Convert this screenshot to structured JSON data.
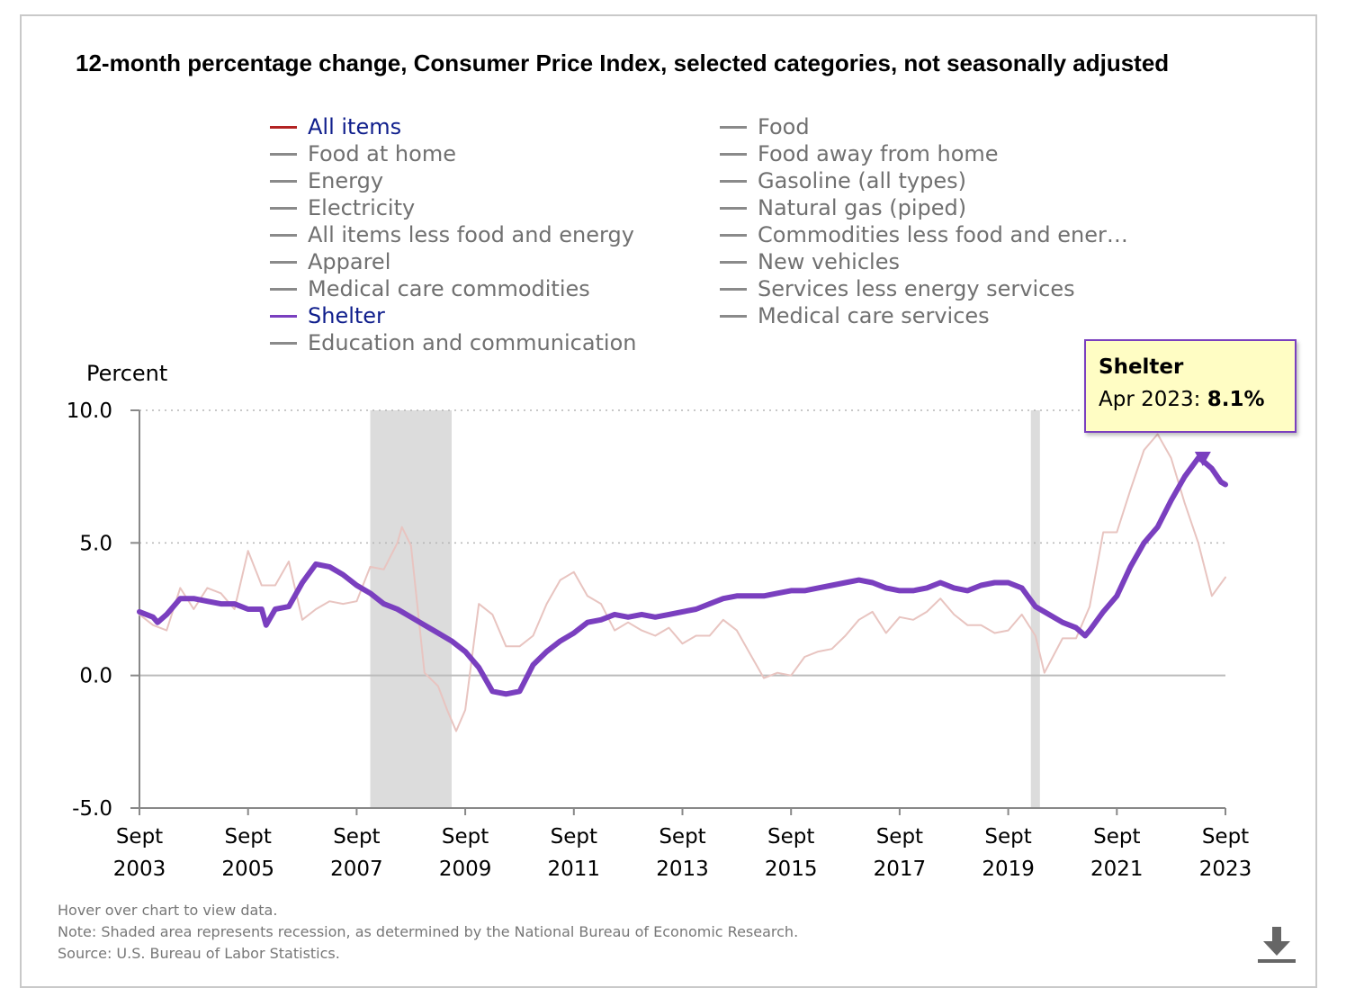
{
  "title": "12-month percentage change, Consumer Price Index, selected categories, not seasonally adjusted",
  "legend": [
    {
      "label": "All items",
      "color": "#b22222",
      "state": "active"
    },
    {
      "label": "Food",
      "color": "#8a8a8a",
      "state": "inactive"
    },
    {
      "label": "Food at home",
      "color": "#8a8a8a",
      "state": "inactive"
    },
    {
      "label": "Food away from home",
      "color": "#8a8a8a",
      "state": "inactive"
    },
    {
      "label": "Energy",
      "color": "#8a8a8a",
      "state": "inactive"
    },
    {
      "label": "Gasoline (all types)",
      "color": "#8a8a8a",
      "state": "inactive"
    },
    {
      "label": "Electricity",
      "color": "#8a8a8a",
      "state": "inactive"
    },
    {
      "label": "Natural gas (piped)",
      "color": "#8a8a8a",
      "state": "inactive"
    },
    {
      "label": "All items less food and energy",
      "color": "#8a8a8a",
      "state": "inactive"
    },
    {
      "label": "Commodities less food and ener…",
      "color": "#8a8a8a",
      "state": "inactive"
    },
    {
      "label": "Apparel",
      "color": "#8a8a8a",
      "state": "inactive"
    },
    {
      "label": "New vehicles",
      "color": "#8a8a8a",
      "state": "inactive"
    },
    {
      "label": "Medical care commodities",
      "color": "#8a8a8a",
      "state": "inactive"
    },
    {
      "label": "Services less energy services",
      "color": "#8a8a8a",
      "state": "inactive"
    },
    {
      "label": "Shelter",
      "color": "#7a3fbf",
      "state": "active"
    },
    {
      "label": "Medical care services",
      "color": "#8a8a8a",
      "state": "inactive"
    },
    {
      "label": "Education and communication",
      "color": "#8a8a8a",
      "state": "inactive"
    }
  ],
  "tooltip": {
    "series": "Shelter",
    "date": "Apr 2023:",
    "value": "8.1%"
  },
  "notes": [
    "Hover over chart to view data.",
    "Note: Shaded area represents recession, as determined by the National Bureau of Economic Research.",
    "Source: U.S. Bureau of Labor Statistics."
  ],
  "icons": {
    "download": "download-icon"
  },
  "chart_data": {
    "type": "line",
    "ylabel": "Percent",
    "ylim": [
      -5,
      10
    ],
    "yticks": [
      -5,
      0,
      5,
      10
    ],
    "ytick_labels": [
      "-5.0",
      "0.0",
      "5.0",
      "10.0"
    ],
    "xlim": [
      "2003-09",
      "2023-09"
    ],
    "xticks": [
      {
        "top": "Sept",
        "bottom": "2003",
        "date": "2003-09"
      },
      {
        "top": "Sept",
        "bottom": "2005",
        "date": "2005-09"
      },
      {
        "top": "Sept",
        "bottom": "2007",
        "date": "2007-09"
      },
      {
        "top": "Sept",
        "bottom": "2009",
        "date": "2009-09"
      },
      {
        "top": "Sept",
        "bottom": "2011",
        "date": "2011-09"
      },
      {
        "top": "Sept",
        "bottom": "2013",
        "date": "2013-09"
      },
      {
        "top": "Sept",
        "bottom": "2015",
        "date": "2015-09"
      },
      {
        "top": "Sept",
        "bottom": "2017",
        "date": "2017-09"
      },
      {
        "top": "Sept",
        "bottom": "2019",
        "date": "2019-09"
      },
      {
        "top": "Sept",
        "bottom": "2021",
        "date": "2021-09"
      },
      {
        "top": "Sept",
        "bottom": "2023",
        "date": "2023-09"
      }
    ],
    "recessions": [
      {
        "start": "2007-12",
        "end": "2009-06"
      },
      {
        "start": "2020-02",
        "end": "2020-04"
      }
    ],
    "grid": "horizontal dotted",
    "legend": "top",
    "series": [
      {
        "name": "All items",
        "color": "#e8c4c0",
        "points": [
          [
            "2003-09",
            2.3
          ],
          [
            "2003-12",
            1.9
          ],
          [
            "2004-03",
            1.7
          ],
          [
            "2004-06",
            3.3
          ],
          [
            "2004-09",
            2.5
          ],
          [
            "2004-12",
            3.3
          ],
          [
            "2005-03",
            3.1
          ],
          [
            "2005-06",
            2.5
          ],
          [
            "2005-09",
            4.7
          ],
          [
            "2005-12",
            3.4
          ],
          [
            "2006-03",
            3.4
          ],
          [
            "2006-06",
            4.3
          ],
          [
            "2006-09",
            2.1
          ],
          [
            "2006-12",
            2.5
          ],
          [
            "2007-03",
            2.8
          ],
          [
            "2007-06",
            2.7
          ],
          [
            "2007-09",
            2.8
          ],
          [
            "2007-12",
            4.1
          ],
          [
            "2008-03",
            4.0
          ],
          [
            "2008-06",
            5.0
          ],
          [
            "2008-07",
            5.6
          ],
          [
            "2008-09",
            4.9
          ],
          [
            "2008-12",
            0.1
          ],
          [
            "2009-03",
            -0.4
          ],
          [
            "2009-05",
            -1.3
          ],
          [
            "2009-07",
            -2.1
          ],
          [
            "2009-09",
            -1.3
          ],
          [
            "2009-12",
            2.7
          ],
          [
            "2010-03",
            2.3
          ],
          [
            "2010-06",
            1.1
          ],
          [
            "2010-09",
            1.1
          ],
          [
            "2010-12",
            1.5
          ],
          [
            "2011-03",
            2.7
          ],
          [
            "2011-06",
            3.6
          ],
          [
            "2011-09",
            3.9
          ],
          [
            "2011-12",
            3.0
          ],
          [
            "2012-03",
            2.7
          ],
          [
            "2012-06",
            1.7
          ],
          [
            "2012-09",
            2.0
          ],
          [
            "2012-12",
            1.7
          ],
          [
            "2013-03",
            1.5
          ],
          [
            "2013-06",
            1.8
          ],
          [
            "2013-09",
            1.2
          ],
          [
            "2013-12",
            1.5
          ],
          [
            "2014-03",
            1.5
          ],
          [
            "2014-06",
            2.1
          ],
          [
            "2014-09",
            1.7
          ],
          [
            "2014-12",
            0.8
          ],
          [
            "2015-03",
            -0.1
          ],
          [
            "2015-06",
            0.1
          ],
          [
            "2015-09",
            0.0
          ],
          [
            "2015-12",
            0.7
          ],
          [
            "2016-03",
            0.9
          ],
          [
            "2016-06",
            1.0
          ],
          [
            "2016-09",
            1.5
          ],
          [
            "2016-12",
            2.1
          ],
          [
            "2017-03",
            2.4
          ],
          [
            "2017-06",
            1.6
          ],
          [
            "2017-09",
            2.2
          ],
          [
            "2017-12",
            2.1
          ],
          [
            "2018-03",
            2.4
          ],
          [
            "2018-06",
            2.9
          ],
          [
            "2018-09",
            2.3
          ],
          [
            "2018-12",
            1.9
          ],
          [
            "2019-03",
            1.9
          ],
          [
            "2019-06",
            1.6
          ],
          [
            "2019-09",
            1.7
          ],
          [
            "2019-12",
            2.3
          ],
          [
            "2020-03",
            1.5
          ],
          [
            "2020-05",
            0.1
          ],
          [
            "2020-09",
            1.4
          ],
          [
            "2020-12",
            1.4
          ],
          [
            "2021-03",
            2.6
          ],
          [
            "2021-06",
            5.4
          ],
          [
            "2021-09",
            5.4
          ],
          [
            "2021-12",
            7.0
          ],
          [
            "2022-03",
            8.5
          ],
          [
            "2022-06",
            9.1
          ],
          [
            "2022-09",
            8.2
          ],
          [
            "2022-12",
            6.5
          ],
          [
            "2023-03",
            5.0
          ],
          [
            "2023-06",
            3.0
          ],
          [
            "2023-09",
            3.7
          ]
        ]
      },
      {
        "name": "Shelter",
        "color": "#7a3fbf",
        "points": [
          [
            "2003-09",
            2.4
          ],
          [
            "2003-12",
            2.2
          ],
          [
            "2004-01",
            2.0
          ],
          [
            "2004-03",
            2.3
          ],
          [
            "2004-06",
            2.9
          ],
          [
            "2004-09",
            2.9
          ],
          [
            "2004-12",
            2.8
          ],
          [
            "2005-03",
            2.7
          ],
          [
            "2005-06",
            2.7
          ],
          [
            "2005-09",
            2.5
          ],
          [
            "2005-12",
            2.5
          ],
          [
            "2006-01",
            1.9
          ],
          [
            "2006-03",
            2.5
          ],
          [
            "2006-06",
            2.6
          ],
          [
            "2006-09",
            3.5
          ],
          [
            "2006-12",
            4.2
          ],
          [
            "2007-03",
            4.1
          ],
          [
            "2007-06",
            3.8
          ],
          [
            "2007-09",
            3.4
          ],
          [
            "2007-12",
            3.1
          ],
          [
            "2008-03",
            2.7
          ],
          [
            "2008-06",
            2.5
          ],
          [
            "2008-09",
            2.2
          ],
          [
            "2008-12",
            1.9
          ],
          [
            "2009-03",
            1.6
          ],
          [
            "2009-06",
            1.3
          ],
          [
            "2009-09",
            0.9
          ],
          [
            "2009-12",
            0.3
          ],
          [
            "2010-03",
            -0.6
          ],
          [
            "2010-06",
            -0.7
          ],
          [
            "2010-09",
            -0.6
          ],
          [
            "2010-12",
            0.4
          ],
          [
            "2011-03",
            0.9
          ],
          [
            "2011-06",
            1.3
          ],
          [
            "2011-09",
            1.6
          ],
          [
            "2011-12",
            2.0
          ],
          [
            "2012-03",
            2.1
          ],
          [
            "2012-06",
            2.3
          ],
          [
            "2012-09",
            2.2
          ],
          [
            "2012-12",
            2.3
          ],
          [
            "2013-03",
            2.2
          ],
          [
            "2013-06",
            2.3
          ],
          [
            "2013-09",
            2.4
          ],
          [
            "2013-12",
            2.5
          ],
          [
            "2014-03",
            2.7
          ],
          [
            "2014-06",
            2.9
          ],
          [
            "2014-09",
            3.0
          ],
          [
            "2014-12",
            3.0
          ],
          [
            "2015-03",
            3.0
          ],
          [
            "2015-06",
            3.1
          ],
          [
            "2015-09",
            3.2
          ],
          [
            "2015-12",
            3.2
          ],
          [
            "2016-03",
            3.3
          ],
          [
            "2016-06",
            3.4
          ],
          [
            "2016-09",
            3.5
          ],
          [
            "2016-12",
            3.6
          ],
          [
            "2017-03",
            3.5
          ],
          [
            "2017-06",
            3.3
          ],
          [
            "2017-09",
            3.2
          ],
          [
            "2017-12",
            3.2
          ],
          [
            "2018-03",
            3.3
          ],
          [
            "2018-06",
            3.5
          ],
          [
            "2018-09",
            3.3
          ],
          [
            "2018-12",
            3.2
          ],
          [
            "2019-03",
            3.4
          ],
          [
            "2019-06",
            3.5
          ],
          [
            "2019-09",
            3.5
          ],
          [
            "2019-12",
            3.3
          ],
          [
            "2020-03",
            2.6
          ],
          [
            "2020-06",
            2.3
          ],
          [
            "2020-09",
            2.0
          ],
          [
            "2020-12",
            1.8
          ],
          [
            "2021-02",
            1.5
          ],
          [
            "2021-03",
            1.7
          ],
          [
            "2021-06",
            2.4
          ],
          [
            "2021-09",
            3.0
          ],
          [
            "2021-12",
            4.1
          ],
          [
            "2022-03",
            5.0
          ],
          [
            "2022-06",
            5.6
          ],
          [
            "2022-09",
            6.6
          ],
          [
            "2022-12",
            7.5
          ],
          [
            "2023-03",
            8.2
          ],
          [
            "2023-04",
            8.1
          ],
          [
            "2023-06",
            7.8
          ],
          [
            "2023-08",
            7.3
          ],
          [
            "2023-09",
            7.2
          ]
        ]
      }
    ],
    "highlight": {
      "series": "Shelter",
      "date": "2023-04",
      "value": 8.1
    }
  }
}
